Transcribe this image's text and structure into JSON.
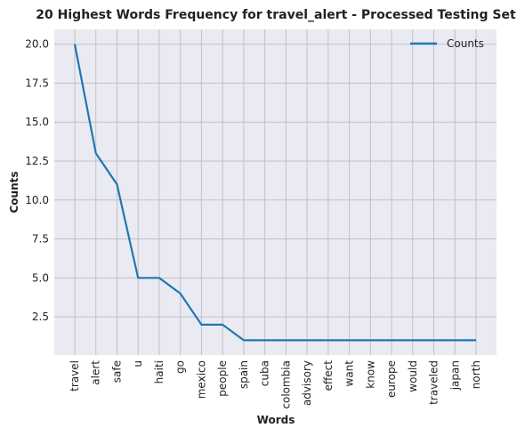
{
  "chart_data": {
    "type": "line",
    "title": "20 Highest Words Frequency for travel_alert - Processed Testing Set",
    "xlabel": "Words",
    "ylabel": "Counts",
    "categories": [
      "travel",
      "alert",
      "safe",
      "u",
      "haiti",
      "go",
      "mexico",
      "people",
      "spain",
      "cuba",
      "colombia",
      "advisory",
      "effect",
      "want",
      "know",
      "europe",
      "would",
      "traveled",
      "japan",
      "north"
    ],
    "series": [
      {
        "name": "Counts",
        "values": [
          20,
          13,
          11,
          5,
          5,
          4,
          2,
          2,
          1,
          1,
          1,
          1,
          1,
          1,
          1,
          1,
          1,
          1,
          1,
          1
        ]
      }
    ],
    "yticks": [
      "2.5",
      "5.0",
      "7.5",
      "10.0",
      "12.5",
      "15.0",
      "17.5",
      "20.0"
    ],
    "ylim": [
      0.05,
      20.95
    ],
    "grid": true,
    "legend": "top-right",
    "colors": {
      "line": "#1f77b4",
      "background": "#eaeaf2",
      "grid": "#c0c0c8"
    }
  }
}
